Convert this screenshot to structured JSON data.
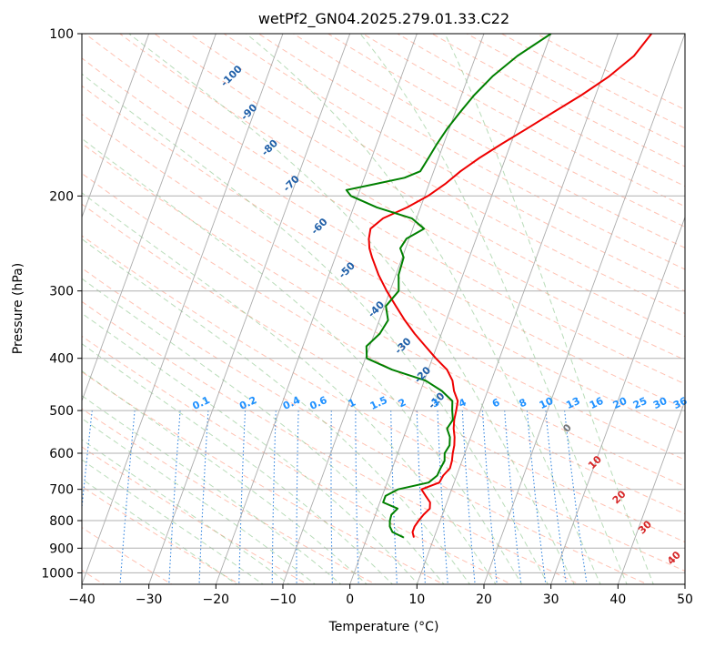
{
  "chart_data": {
    "type": "line",
    "title": "wetPf2_GN04.2025.279.01.33.C22",
    "xlabel": "Temperature (°C)",
    "ylabel": "Pressure (hPa)",
    "xlim": [
      -40,
      50
    ],
    "ylim": [
      1050,
      100
    ],
    "y_scale": "log",
    "grid": true,
    "x_ticks": [
      -40,
      -30,
      -20,
      -10,
      0,
      10,
      20,
      30,
      40,
      50
    ],
    "y_ticks": [
      100,
      200,
      300,
      400,
      500,
      600,
      700,
      800,
      900,
      1000
    ],
    "skew_lines_celsius": [
      -150,
      -140,
      -130,
      -120,
      -110,
      -100,
      -90,
      -80,
      -70,
      -60,
      -50,
      -40,
      -30,
      -20,
      -10,
      0,
      10,
      20,
      30,
      40,
      50
    ],
    "dry_adiabat_labels": [
      {
        "text": "-100",
        "t": -45.3,
        "p": 120
      },
      {
        "text": "-90",
        "t": -40.7,
        "p": 140
      },
      {
        "text": "-80",
        "t": -35.7,
        "p": 163
      },
      {
        "text": "-70",
        "t": -30.5,
        "p": 190
      },
      {
        "text": "-60",
        "t": -24.0,
        "p": 228
      },
      {
        "text": "-50",
        "t": -17.5,
        "p": 275
      },
      {
        "text": "-40",
        "t": -11.0,
        "p": 325
      },
      {
        "text": "-30",
        "t": -5.0,
        "p": 380
      },
      {
        "text": "-20",
        "t": -0.5,
        "p": 430
      },
      {
        "text": "-10",
        "t": 3.0,
        "p": 480
      }
    ],
    "moist_adiabat_labels": [
      {
        "text": "0",
        "t": 24,
        "p": 540
      },
      {
        "text": "10",
        "t": 30,
        "p": 625
      },
      {
        "text": "20",
        "t": 35.5,
        "p": 725
      },
      {
        "text": "30",
        "t": 41,
        "p": 825
      },
      {
        "text": "40",
        "t": 47,
        "p": 940
      }
    ],
    "mixing_ratio_labels": [
      "0.1",
      "0.2",
      "0.4",
      "0.6",
      "1",
      "1.5",
      "2",
      "3",
      "4",
      "6",
      "8",
      "10",
      "13",
      "16",
      "20",
      "25",
      "30",
      "36"
    ],
    "mixing_ratio_label_t": [
      -22,
      -15,
      -8.5,
      -4.5,
      0.5,
      4.5,
      8,
      13,
      17,
      22,
      26,
      29.5,
      33.5,
      37,
      40.5,
      43.5,
      46.5,
      49.5
    ],
    "series": [
      {
        "color": "#ee0000",
        "p": [
          860,
          840,
          820,
          800,
          780,
          760,
          740,
          720,
          700,
          680,
          660,
          640,
          620,
          600,
          580,
          560,
          540,
          520,
          500,
          480,
          460,
          440,
          420,
          400,
          380,
          360,
          340,
          320,
          300,
          280,
          260,
          250,
          240,
          230,
          220,
          210,
          200,
          190,
          180,
          170,
          160,
          150,
          140,
          130,
          120,
          110,
          100
        ],
        "t": [
          7.0,
          6.5,
          6.5,
          6.8,
          7.2,
          7.8,
          7.5,
          6.5,
          5.5,
          7.8,
          8.0,
          8.6,
          8.5,
          8.2,
          8.0,
          7.6,
          7.0,
          6.6,
          6.4,
          6.1,
          5.0,
          4.2,
          2.8,
          0.5,
          -1.7,
          -4.0,
          -6.2,
          -8.3,
          -10.5,
          -12.6,
          -14.5,
          -15.4,
          -16.0,
          -16.3,
          -15.0,
          -12.0,
          -9.5,
          -7.6,
          -6.0,
          -3.9,
          -1.3,
          1.6,
          4.6,
          7.9,
          11.0,
          13.6,
          15.0
        ]
      },
      {
        "color": "#008000",
        "p": [
          860,
          840,
          820,
          800,
          780,
          760,
          740,
          720,
          700,
          680,
          660,
          640,
          620,
          600,
          580,
          560,
          540,
          520,
          500,
          480,
          460,
          440,
          420,
          400,
          380,
          360,
          340,
          320,
          300,
          280,
          260,
          250,
          240,
          230,
          220,
          210,
          200,
          195,
          190,
          185,
          180,
          170,
          160,
          150,
          140,
          130,
          120,
          110,
          100
        ],
        "t": [
          5.5,
          3.5,
          2.8,
          2.5,
          2.4,
          3.0,
          0.5,
          0.5,
          2.0,
          6.2,
          7.1,
          7.2,
          7.4,
          7.0,
          7.3,
          6.9,
          6.0,
          6.4,
          5.8,
          5.3,
          3.2,
          0.2,
          -5.4,
          -9.8,
          -10.5,
          -9.2,
          -8.7,
          -9.8,
          -8.7,
          -9.6,
          -9.8,
          -10.8,
          -10.4,
          -8.3,
          -10.7,
          -16.5,
          -21.0,
          -22.0,
          -18.0,
          -14.0,
          -12.0,
          -11.5,
          -11.0,
          -10.3,
          -9.3,
          -8.1,
          -6.4,
          -3.8,
          0.0
        ]
      }
    ]
  }
}
